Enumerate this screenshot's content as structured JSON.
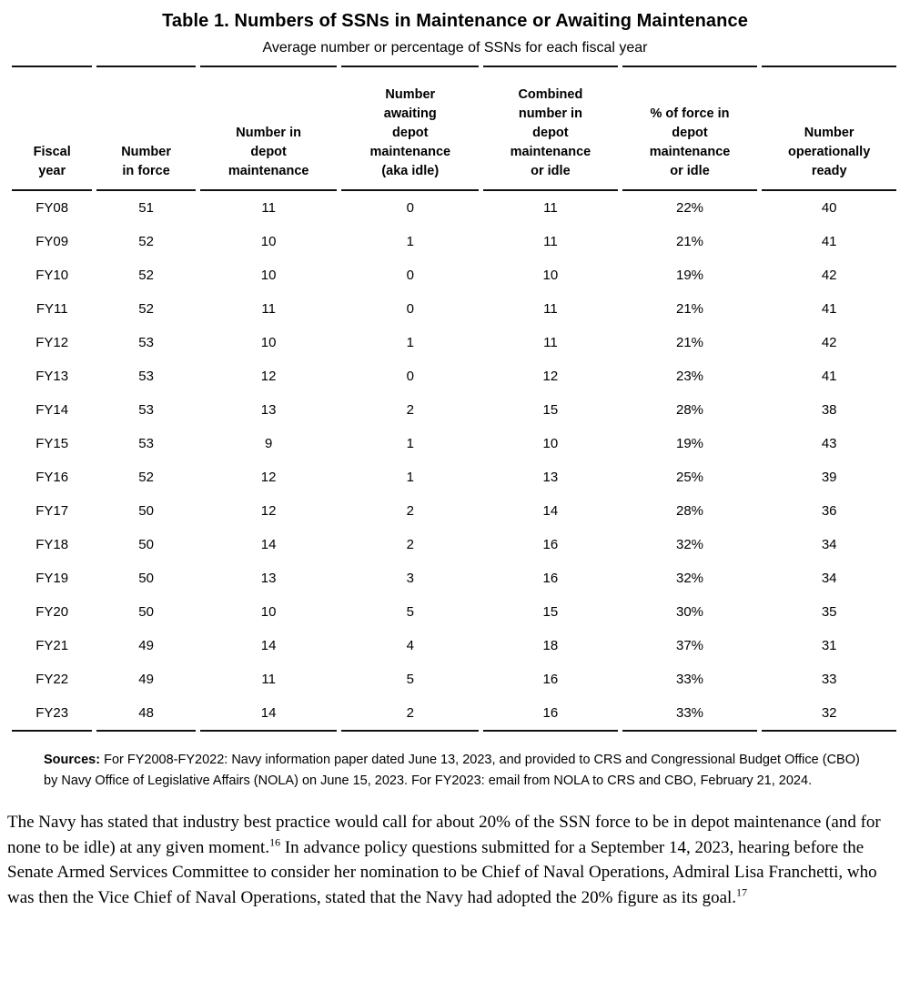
{
  "table": {
    "title": "Table 1. Numbers of SSNs in Maintenance or Awaiting Maintenance",
    "subtitle": "Average number or percentage of SSNs for each fiscal year",
    "headers": [
      "Fiscal\nyear",
      "Number\nin force",
      "Number in\ndepot\nmaintenance",
      "Number\nawaiting\ndepot\nmaintenance\n(aka idle)",
      "Combined\nnumber in\ndepot\nmaintenance\nor idle",
      "% of force in\ndepot\nmaintenance\nor idle",
      "Number\noperationally\nready"
    ],
    "rows": [
      [
        "FY08",
        "51",
        "11",
        "0",
        "11",
        "22%",
        "40"
      ],
      [
        "FY09",
        "52",
        "10",
        "1",
        "11",
        "21%",
        "41"
      ],
      [
        "FY10",
        "52",
        "10",
        "0",
        "10",
        "19%",
        "42"
      ],
      [
        "FY11",
        "52",
        "11",
        "0",
        "11",
        "21%",
        "41"
      ],
      [
        "FY12",
        "53",
        "10",
        "1",
        "11",
        "21%",
        "42"
      ],
      [
        "FY13",
        "53",
        "12",
        "0",
        "12",
        "23%",
        "41"
      ],
      [
        "FY14",
        "53",
        "13",
        "2",
        "15",
        "28%",
        "38"
      ],
      [
        "FY15",
        "53",
        "9",
        "1",
        "10",
        "19%",
        "43"
      ],
      [
        "FY16",
        "52",
        "12",
        "1",
        "13",
        "25%",
        "39"
      ],
      [
        "FY17",
        "50",
        "12",
        "2",
        "14",
        "28%",
        "36"
      ],
      [
        "FY18",
        "50",
        "14",
        "2",
        "16",
        "32%",
        "34"
      ],
      [
        "FY19",
        "50",
        "13",
        "3",
        "16",
        "32%",
        "34"
      ],
      [
        "FY20",
        "50",
        "10",
        "5",
        "15",
        "30%",
        "35"
      ],
      [
        "FY21",
        "49",
        "14",
        "4",
        "18",
        "37%",
        "31"
      ],
      [
        "FY22",
        "49",
        "11",
        "5",
        "16",
        "33%",
        "33"
      ],
      [
        "FY23",
        "48",
        "14",
        "2",
        "16",
        "33%",
        "32"
      ]
    ]
  },
  "sources": {
    "label": "Sources:",
    "text": " For FY2008-FY2022: Navy information paper dated June 13, 2023, and provided to CRS and Congressional Budget Office (CBO) by Navy Office of Legislative Affairs (NOLA) on June 15, 2023. For FY2023: email from NOLA to CRS and CBO, February 21, 2024."
  },
  "paragraph": {
    "part1": "The Navy has stated that industry best practice would call for about 20% of the SSN force to be in depot maintenance (and for none to be idle) at any given moment.",
    "footnote1": "16",
    "part2": " In advance policy questions submitted for a September 14, 2023, hearing before the Senate Armed Services Committee to consider her nomination to be Chief of Naval Operations, Admiral Lisa Franchetti, who was then the Vice Chief of Naval Operations, stated that the Navy had adopted the 20% figure as its goal.",
    "footnote2": "17"
  }
}
